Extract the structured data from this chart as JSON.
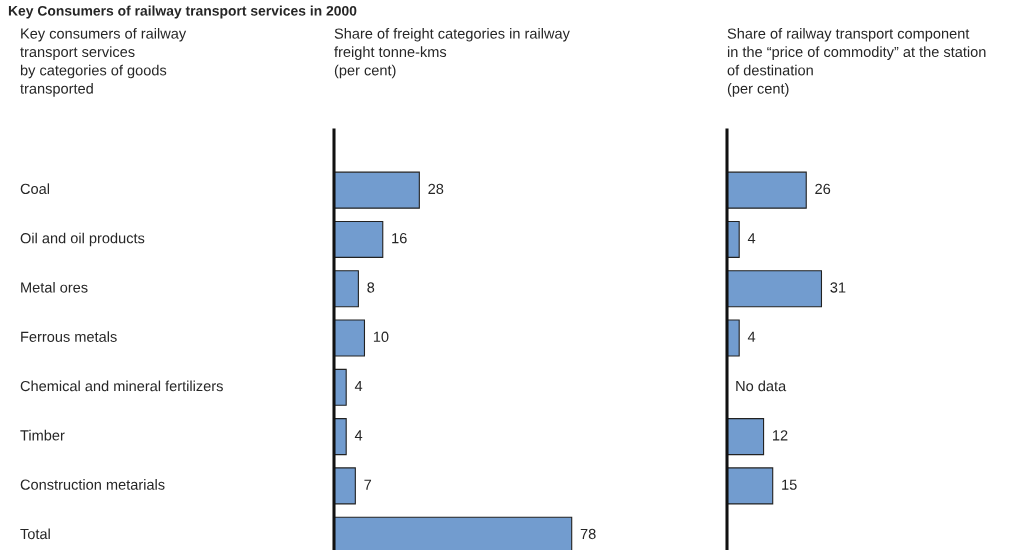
{
  "chart_data": [
    {
      "type": "bar",
      "orientation": "horizontal",
      "title": "Key Consumers of railway transport services in 2000",
      "ylabel": "Key consumers of railway\ntransport services\nby categories of goods\ntransported",
      "subtitle": "Share of freight categories in railway\nfreight tonne-kms\n(per cent)",
      "categories": [
        "Coal",
        "Oil and oil products",
        "Metal ores",
        "Ferrous metals",
        "Chemical and mineral fertilizers",
        "Timber",
        "Construction metarials",
        "Total"
      ],
      "values": [
        28,
        16,
        8,
        10,
        4,
        4,
        7,
        78
      ],
      "color": "#729ccf",
      "data_labels": true
    },
    {
      "type": "bar",
      "orientation": "horizontal",
      "title": "Share of railway transport component\nin the “price of commodity” at the station\nof destination\n(per cent)",
      "categories": [
        null,
        null,
        null,
        null,
        null,
        null,
        null,
        null
      ],
      "values": [
        26,
        4,
        31,
        4,
        null,
        12,
        15,
        null
      ],
      "color": "#729ccf",
      "value_labels": [
        "26",
        "4",
        "31",
        "4",
        "No data",
        "12",
        "15",
        null
      ]
    }
  ]
}
